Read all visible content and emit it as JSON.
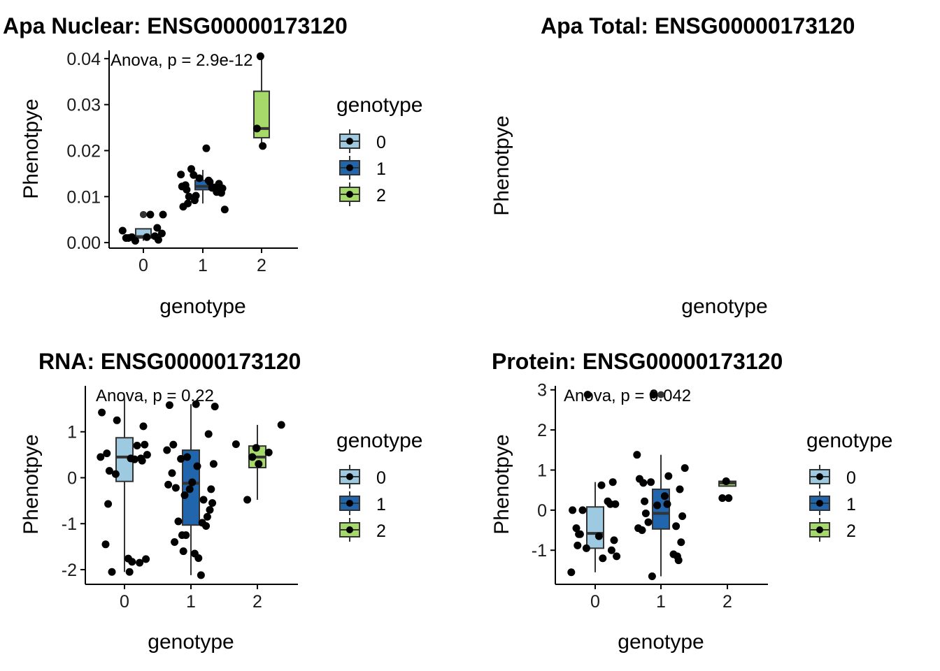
{
  "colors": {
    "g0": "#9ecae1",
    "g1": "#2166ac",
    "g2": "#a6d96a",
    "point": "#000000",
    "axis": "#000000"
  },
  "chart_data": [
    {
      "type": "box",
      "title": "Apa Nuclear: ENSG00000173120",
      "xlabel": "genotype",
      "ylabel": "Phenotpye",
      "categories": [
        "0",
        "1",
        "2"
      ],
      "ylim": [
        -0.0012,
        0.0418
      ],
      "yticks": [
        "0.00",
        "0.01",
        "0.02",
        "0.03",
        "0.04"
      ],
      "ytick_values": [
        0,
        0.01,
        0.02,
        0.03,
        0.04
      ],
      "annotation": "Anova, p = 2.9e-12",
      "boxes": [
        {
          "genotype": "0",
          "q1": 0.001,
          "median": 0.0013,
          "q3": 0.003,
          "whisker_low": 0.0004,
          "whisker_high": 0.003,
          "outliers": [
            0.0061,
            0.0061
          ]
        },
        {
          "genotype": "1",
          "q1": 0.0115,
          "median": 0.0122,
          "q3": 0.0135,
          "whisker_low": 0.0085,
          "whisker_high": 0.0158,
          "outliers": []
        },
        {
          "genotype": "2",
          "q1": 0.0228,
          "median": 0.0248,
          "q3": 0.0329,
          "whisker_low": 0.021,
          "whisker_high": 0.0405,
          "outliers": []
        }
      ],
      "points": [
        {
          "genotype": "0",
          "y": [
            0.0026,
            0.002,
            0.0014,
            0.0006,
            0.0004,
            0.001,
            0.0012,
            0.0061,
            0.0061,
            0.0032,
            0.0012,
            0.001
          ]
        },
        {
          "genotype": "1",
          "y": [
            0.0072,
            0.0078,
            0.0147,
            0.014,
            0.0122,
            0.0108,
            0.012,
            0.0115,
            0.0092,
            0.0085,
            0.0205,
            0.0132,
            0.0118,
            0.011,
            0.016,
            0.0125,
            0.01,
            0.0112,
            0.0135,
            0.0128,
            0.0148,
            0.0115,
            0.0102,
            0.0119
          ]
        },
        {
          "genotype": "2",
          "y": [
            0.0405,
            0.0248,
            0.021
          ]
        }
      ],
      "legend": {
        "title": "genotype",
        "entries": [
          "0",
          "1",
          "2"
        ]
      }
    },
    {
      "type": "box",
      "title": "Apa Total: ENSG00000173120",
      "xlabel": "genotype",
      "ylabel": "Phenotpye",
      "categories": [],
      "boxes": [],
      "points": []
    },
    {
      "type": "box",
      "title": "RNA: ENSG00000173120",
      "xlabel": "genotype",
      "ylabel": "Phenotpye",
      "categories": [
        "0",
        "1",
        "2"
      ],
      "ylim": [
        -2.32,
        2.0
      ],
      "yticks": [
        "-2",
        "-1",
        "0",
        "1"
      ],
      "ytick_values": [
        -2,
        -1,
        0,
        1
      ],
      "annotation": "Anova, p = 0.22",
      "boxes": [
        {
          "genotype": "0",
          "q1": -0.08,
          "median": 0.45,
          "q3": 0.87,
          "whisker_low": -2.05,
          "whisker_high": 1.75,
          "outliers": []
        },
        {
          "genotype": "1",
          "q1": -1.03,
          "median": -0.12,
          "q3": 0.6,
          "whisker_low": -2.12,
          "whisker_high": 1.6,
          "outliers": []
        },
        {
          "genotype": "2",
          "q1": 0.22,
          "median": 0.45,
          "q3": 0.69,
          "whisker_low": -0.48,
          "whisker_high": 1.15,
          "outliers": []
        }
      ],
      "points": [
        {
          "genotype": "0",
          "y": [
            1.42,
            0.72,
            0.7,
            0.42,
            0.08,
            -0.57,
            -1.76,
            -1.83,
            -1.77,
            -1.85,
            -2.05,
            -1.45,
            0.15,
            1.12,
            0.42,
            0.37,
            0.45,
            0.53,
            1.25,
            0.4,
            0.5,
            -2.05
          ]
        },
        {
          "genotype": "1",
          "y": [
            1.55,
            1.58,
            0.41,
            0.45,
            -0.15,
            -0.25,
            -0.48,
            -0.85,
            -1.25,
            -1.4,
            -1.65,
            -1.75,
            -0.55,
            -1.05,
            -0.95,
            0.1,
            -0.22,
            -0.7,
            0.25,
            0.95,
            0.6,
            0.72,
            -1.6,
            -2.12,
            0.3,
            1.6,
            -0.38,
            -0.25,
            -1.25,
            -0.1,
            -0.98
          ]
        },
        {
          "genotype": "2",
          "y": [
            0.65,
            0.45,
            0.3,
            0.55,
            1.15,
            0.73,
            -0.48
          ]
        }
      ],
      "legend": {
        "title": "genotype",
        "entries": [
          "0",
          "1",
          "2"
        ]
      }
    },
    {
      "type": "box",
      "title": "Protein: ENSG00000173120",
      "xlabel": "genotype",
      "ylabel": "Phenotpye",
      "categories": [
        "0",
        "1",
        "2"
      ],
      "ylim": [
        -1.85,
        3.1
      ],
      "yticks": [
        "-1",
        "0",
        "1",
        "2",
        "3"
      ],
      "ytick_values": [
        -1,
        0,
        1,
        2,
        3
      ],
      "annotation": "Anova, p = 0.042",
      "boxes": [
        {
          "genotype": "0",
          "q1": -0.95,
          "median": -0.58,
          "q3": 0.08,
          "whisker_low": -1.55,
          "whisker_high": 0.7,
          "outliers": []
        },
        {
          "genotype": "1",
          "q1": -0.47,
          "median": -0.08,
          "q3": 0.52,
          "whisker_low": -1.65,
          "whisker_high": 1.38,
          "outliers": [
            2.88
          ]
        },
        {
          "genotype": "2",
          "q1": 0.6,
          "median": 0.68,
          "q3": 0.72,
          "whisker_low": 0.6,
          "whisker_high": 0.72,
          "outliers": []
        }
      ],
      "points": [
        {
          "genotype": "0",
          "y": [
            0.0,
            0.15,
            0.22,
            -1.0,
            -0.95,
            -0.6,
            -0.65,
            -1.2,
            -1.15,
            0.15,
            0.0,
            -0.45,
            -0.6,
            -0.75,
            0.62,
            0.7,
            -1.55,
            -0.88,
            2.88
          ]
        },
        {
          "genotype": "1",
          "y": [
            1.05,
            0.78,
            0.7,
            0.12,
            -0.45,
            -0.8,
            -1.1,
            -1.15,
            -1.65,
            0.22,
            0.35,
            0.85,
            -0.15,
            -0.4,
            -0.3,
            -0.5,
            -0.08,
            0.52,
            0.15,
            -1.25,
            1.38,
            0.68,
            2.88
          ]
        },
        {
          "genotype": "2",
          "y": [
            0.72,
            0.3,
            0.3
          ]
        }
      ],
      "legend": {
        "title": "genotype",
        "entries": [
          "0",
          "1",
          "2"
        ]
      }
    }
  ]
}
